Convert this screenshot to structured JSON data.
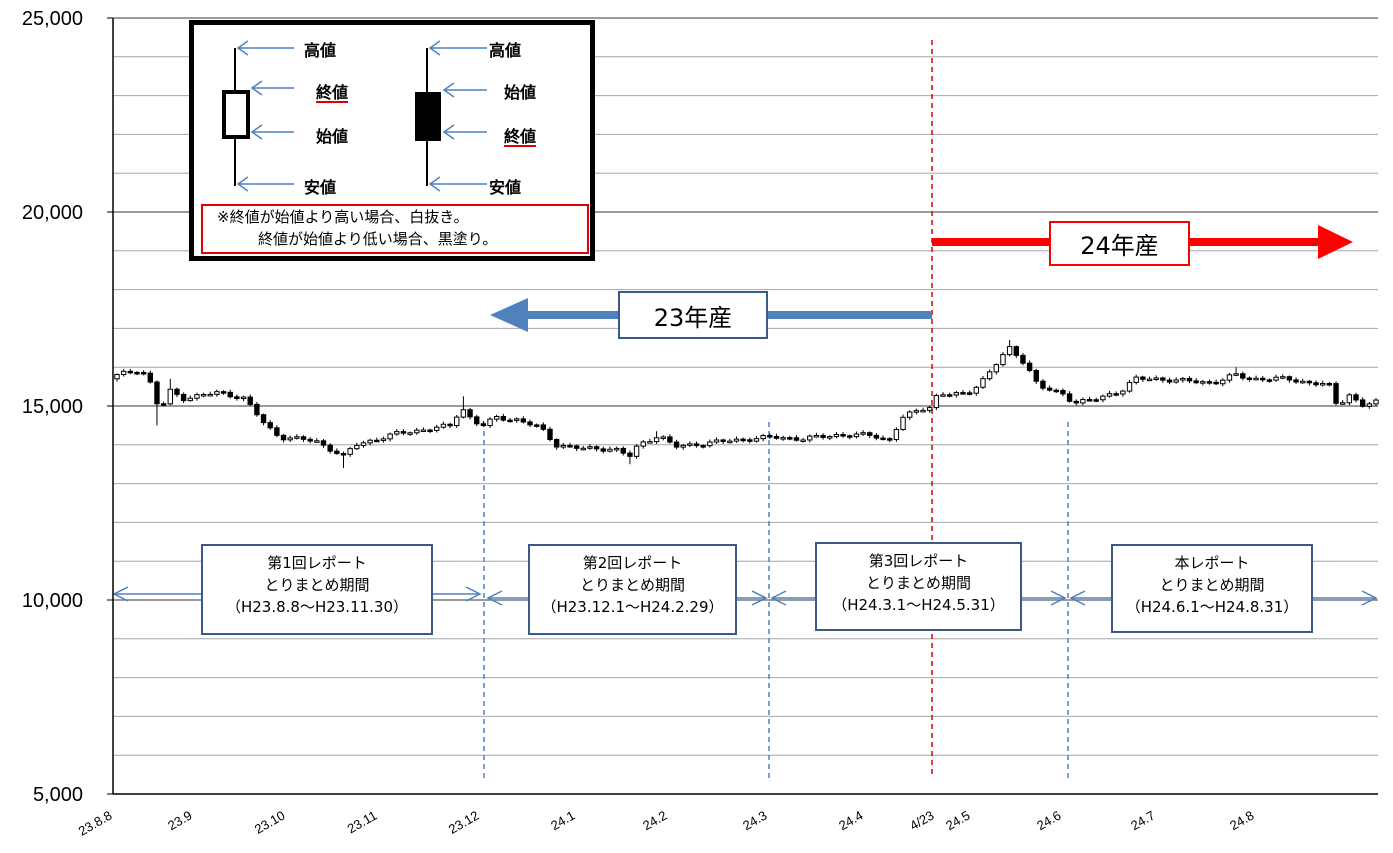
{
  "chart_data": {
    "type": "candlestick",
    "ylim": [
      5000,
      25000
    ],
    "y_ticks": [
      "5,000",
      "10,000",
      "15,000",
      "20,000",
      "25,000"
    ],
    "y_tick_values": [
      5000,
      10000,
      15000,
      20000,
      25000
    ],
    "minor_gridline_step": 1000,
    "x_tick_labels": [
      "23.8.8",
      "23.9",
      "23.10",
      "23.11",
      "23.12",
      "24.1",
      "24.2",
      "24.3",
      "24.4",
      "4/23",
      "24.5",
      "24.6",
      "24.7",
      "24.8"
    ],
    "keypoints": [
      {
        "date": "23.8.8",
        "close": 15700,
        "high": 17300,
        "low": 15400
      },
      {
        "date": "23.8.10",
        "close": 15800
      },
      {
        "date": "23.8.20",
        "close": 15950
      },
      {
        "date": "23.8.25",
        "close": 15500
      },
      {
        "date": "23.8.28",
        "close": 14800,
        "low": 14500
      },
      {
        "date": "23.9.1",
        "close": 15400,
        "high": 15700
      },
      {
        "date": "23.9.5",
        "close": 15200
      },
      {
        "date": "23.9.15",
        "close": 15350
      },
      {
        "date": "23.9.22",
        "close": 15200
      },
      {
        "date": "23.9.28",
        "close": 14500
      },
      {
        "date": "23.10.1",
        "close": 14200
      },
      {
        "date": "23.10.10",
        "close": 14100
      },
      {
        "date": "23.10.17",
        "close": 13700,
        "low": 13400
      },
      {
        "date": "23.10.20",
        "close": 14000
      },
      {
        "date": "23.10.31",
        "close": 14300
      },
      {
        "date": "23.11.10",
        "close": 14400
      },
      {
        "date": "23.11.20",
        "close": 14500
      },
      {
        "date": "23.11.23",
        "close": 15000,
        "high": 15250
      },
      {
        "date": "23.11.28",
        "close": 14600
      },
      {
        "date": "23.12.1",
        "close": 14500
      },
      {
        "date": "23.12.6",
        "close": 14700
      },
      {
        "date": "23.12.15",
        "close": 14650
      },
      {
        "date": "23.12.25",
        "close": 14450
      },
      {
        "date": "24.1.1",
        "close": 14000
      },
      {
        "date": "24.1.10",
        "close": 13900
      },
      {
        "date": "24.1.20",
        "close": 13900
      },
      {
        "date": "24.1.25",
        "close": 13700,
        "low": 13500
      },
      {
        "date": "24.1.28",
        "close": 14000
      },
      {
        "date": "24.2.3",
        "close": 14250,
        "high": 14350
      },
      {
        "date": "24.2.7",
        "close": 13950
      },
      {
        "date": "24.2.20",
        "close": 14100
      },
      {
        "date": "24.3.1",
        "close": 14200
      },
      {
        "date": "24.3.10",
        "close": 14150
      },
      {
        "date": "24.3.20",
        "close": 14250
      },
      {
        "date": "24.4.1",
        "close": 14250
      },
      {
        "date": "24.4.7",
        "close": 14100
      },
      {
        "date": "24.4.12",
        "close": 14700
      },
      {
        "date": "24.4.20",
        "close": 14950
      },
      {
        "date": "24.4.25",
        "close": 15000
      },
      {
        "date": "24.5.1",
        "close": 15300
      },
      {
        "date": "24.5.8",
        "close": 15300
      },
      {
        "date": "24.5.13",
        "close": 15800
      },
      {
        "date": "24.5.18",
        "close": 16500,
        "high": 16700
      },
      {
        "date": "24.5.22",
        "close": 16100
      },
      {
        "date": "24.5.25",
        "close": 15500
      },
      {
        "date": "24.5.31",
        "close": 15300
      },
      {
        "date": "24.6.3",
        "close": 15100
      },
      {
        "date": "24.6.10",
        "close": 15150
      },
      {
        "date": "24.6.20",
        "close": 15400
      },
      {
        "date": "24.6.25",
        "close": 15700
      },
      {
        "date": "24.7.1",
        "close": 15700
      },
      {
        "date": "24.7.10",
        "close": 15650
      },
      {
        "date": "24.7.20",
        "close": 15600
      },
      {
        "date": "24.7.27",
        "close": 15800,
        "high": 16000
      },
      {
        "date": "24.8.1",
        "close": 15700
      },
      {
        "date": "24.8.10",
        "close": 15700
      },
      {
        "date": "24.8.15",
        "close": 15600
      },
      {
        "date": "24.8.20",
        "close": 15550
      },
      {
        "date": "24.8.22",
        "close": 15000
      },
      {
        "date": "24.8.25",
        "close": 15300
      },
      {
        "date": "24.8.28",
        "close": 15000
      },
      {
        "date": "24.8.31",
        "close": 15100
      }
    ]
  },
  "legend": {
    "white_candle": {
      "high": "高値",
      "close": "終値",
      "open": "始値",
      "low": "安値"
    },
    "black_candle": {
      "high": "高値",
      "open": "始値",
      "close": "終値",
      "low": "安値"
    },
    "note_line1": "※終値が始値より高い場合、白抜き。",
    "note_line2": "終値が始値より低い場合、黒塗り。"
  },
  "crop_labels": {
    "crop23": "23年産",
    "crop24": "24年産"
  },
  "periods": [
    {
      "line1": "第1回レポート",
      "line2": "とりまとめ期間",
      "line3": "（H23.8.8～H23.11.30）"
    },
    {
      "line1": "第2回レポート",
      "line2": "とりまとめ期間",
      "line3": "（H23.12.1～H24.2.29）"
    },
    {
      "line1": "第3回レポート",
      "line2": "とりまとめ期間",
      "line3": "（H24.3.1～H24.5.31）"
    },
    {
      "line1": "本レポート",
      "line2": "とりまとめ期間",
      "line3": "（H24.6.1～H24.8.31）"
    }
  ],
  "colors": {
    "crop23_arrow": "#4f81bd",
    "crop24_arrow": "#ff0000",
    "boundary_line": "#e00000",
    "period_divider": "#4f81bd",
    "period_box_border": "#3b5a86"
  }
}
